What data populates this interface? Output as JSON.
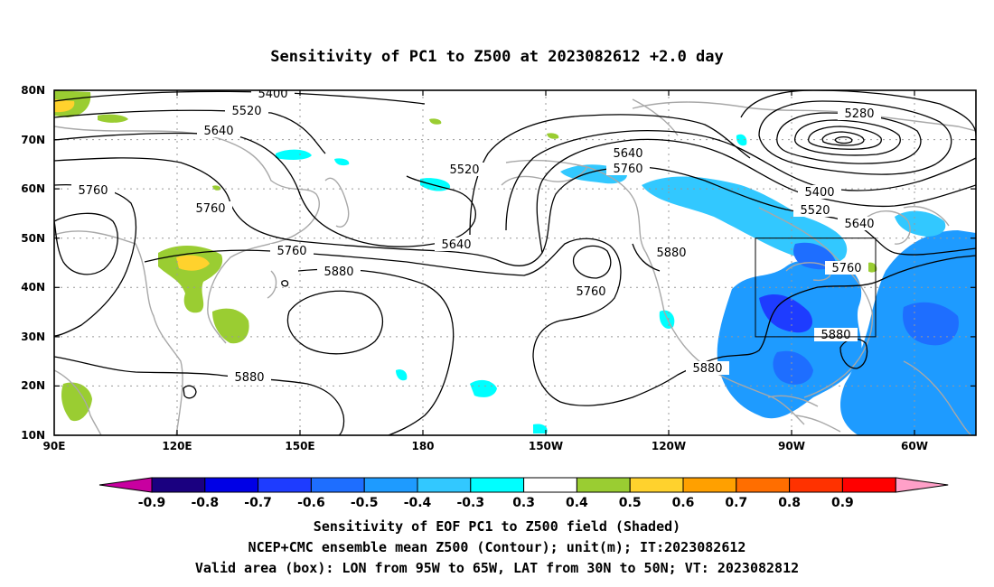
{
  "title": "Sensitivity of PC1 to Z500 at 2023082612 +2.0 day",
  "map": {
    "lat_labels": [
      "80N",
      "70N",
      "60N",
      "50N",
      "40N",
      "30N",
      "20N",
      "10N"
    ],
    "lon_labels": [
      "90E",
      "120E",
      "150E",
      "180",
      "150W",
      "120W",
      "90W",
      "60W"
    ]
  },
  "contour_labels": [
    "5400",
    "5520",
    "5640",
    "5760",
    "5280",
    "5400",
    "5520",
    "5640",
    "5760",
    "5520",
    "5640",
    "5760",
    "5880",
    "5760",
    "5880",
    "5880",
    "5760",
    "5640",
    "5760",
    "5880",
    "5880"
  ],
  "colorbar": {
    "labels": [
      "-0.9",
      "-0.8",
      "-0.7",
      "-0.6",
      "-0.5",
      "-0.4",
      "-0.3",
      "0.3",
      "0.4",
      "0.5",
      "0.6",
      "0.7",
      "0.8",
      "0.9"
    ],
    "colors": [
      "#1a0080",
      "#0000e6",
      "#1e3cff",
      "#1e6eff",
      "#1e9bff",
      "#32c8ff",
      "#00ffff",
      "#ffffff",
      "#9acd32",
      "#ffd22d",
      "#ffa000",
      "#ff6e00",
      "#ff3200",
      "#ff0000"
    ],
    "low_end_color": "#c800a0",
    "high_end_color": "#ffa0c8"
  },
  "captions": {
    "line1": "Sensitivity of EOF PC1 to Z500 field (Shaded)",
    "line2": "NCEP+CMC ensemble mean Z500 (Contour); unit(m); IT:2023082612",
    "line3": "Valid area (box): LON from 95W to 65W, LAT from 30N to 50N; VT: 2023082812"
  }
}
